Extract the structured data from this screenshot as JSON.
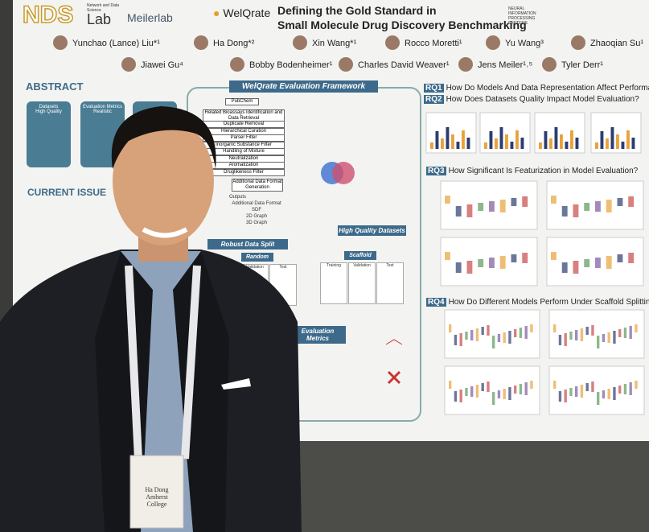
{
  "poster": {
    "logos": {
      "nds": "NDS",
      "nds_sub": "Network and Data Science",
      "lab": "Lab",
      "meilerlab": "Meilerlab",
      "welqrate": "WelQrate",
      "neurips": "Neural Information Processing Systems"
    },
    "title_lines": [
      "Defining the Gold Standard in",
      "Small Molecule Drug Discovery Benchmarking"
    ],
    "authors": [
      "Yunchao (Lance) Liu*¹",
      "Ha Dong*²",
      "Xin Wang*¹",
      "Rocco Moretti¹",
      "Yu Wang³",
      "Zhaoqian Su¹",
      "Jiawei Gu⁴",
      "Bobby Bodenheimer¹",
      "Charles David Weaver¹",
      "Jens Meiler¹˒⁵",
      "Tyler Derr¹"
    ],
    "abstract": {
      "heading": "ABSTRACT",
      "cards": [
        {
          "title": "Datasets",
          "sub": "High Quality"
        },
        {
          "title": "Evaluation Metrics",
          "sub": "Realistic"
        }
      ]
    },
    "current_issues": "CURRENT ISSUE",
    "framework": {
      "title": "WelQrate Evaluation Framework",
      "steps": [
        "PubChem",
        "Related Bioassays Identification and Data Retrieval",
        "Duplicate Removal",
        "Hierarchical Curation",
        "Parser Filter",
        "Inorganic Substance Filter",
        "Handling of Mixture",
        "Neutralization",
        "Aromatization",
        "Druglikeness Filter",
        "Additional Data Format Generation"
      ],
      "outputs": "Outputs",
      "formats": [
        "Additional Data Format",
        "SDF",
        "2D Graph",
        "3D Graph"
      ],
      "hq": "High Quality Datasets",
      "split": "Robust Data Split",
      "split_types": [
        "Random",
        "Scaffold"
      ],
      "split_sets": [
        "Training",
        "Validation",
        "Test"
      ],
      "metrics": "Evaluation Metrics"
    },
    "research_questions": [
      {
        "label": "RQ1",
        "text": "How Do Models And Data Representation Affect Performance"
      },
      {
        "label": "RQ2",
        "text": "How Does Datasets Quality Impact Model Evaluation?"
      },
      {
        "label": "RQ3",
        "text": "How Significant Is Featurization in Model Evaluation?"
      },
      {
        "label": "RQ4",
        "text": "How Do Different Models Perform Under Scaffold Splitting?"
      }
    ]
  },
  "badge": {
    "name": "Ha Dong",
    "org": "Amherst College"
  }
}
